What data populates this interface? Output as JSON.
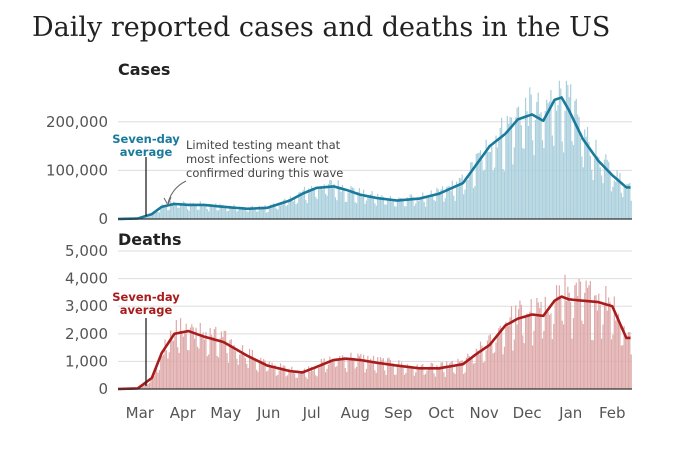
{
  "title": "Daily reported cases and deaths in the US",
  "colors": {
    "cases_bar": "#a9cfdc",
    "cases_line": "#1a7a9c",
    "deaths_bar": "#dea9a9",
    "deaths_line": "#a81c1c",
    "grid": "#dddddd",
    "axis": "#333333"
  },
  "cases_panel": {
    "title": "Cases",
    "seven_day_label": [
      "Seven-day",
      "average"
    ],
    "annotation": [
      "Limited testing meant that",
      "most infections were not",
      "confirmed during this wave"
    ]
  },
  "deaths_panel": {
    "title": "Deaths",
    "seven_day_label": [
      "Seven-day",
      "average"
    ]
  },
  "chart_data": [
    {
      "type": "bar",
      "title": "Cases",
      "subtitle": "Daily reported cases and deaths in the US",
      "x_ticks": [
        "Mar",
        "Apr",
        "May",
        "Jun",
        "Jul",
        "Aug",
        "Sep",
        "Oct",
        "Nov",
        "Dec",
        "Jan",
        "Feb"
      ],
      "y_ticks": [
        "0",
        "100,000",
        "200,000"
      ],
      "ylim": [
        0,
        290000
      ],
      "series": [
        {
          "name": "Seven-day average",
          "type": "line",
          "x": [
            "Mar 1",
            "Mar 15",
            "Mar 25",
            "Apr 1",
            "Apr 10",
            "Apr 20",
            "May 1",
            "May 15",
            "Jun 1",
            "Jun 15",
            "Jul 1",
            "Jul 10",
            "Jul 20",
            "Aug 1",
            "Aug 10",
            "Aug 20",
            "Sep 1",
            "Sep 15",
            "Oct 1",
            "Oct 15",
            "Nov 1",
            "Nov 10",
            "Nov 20",
            "Dec 1",
            "Dec 10",
            "Dec 20",
            "Dec 28",
            "Jan 5",
            "Jan 10",
            "Jan 15",
            "Jan 25",
            "Feb 5",
            "Feb 15",
            "Feb 25"
          ],
          "values": [
            0,
            1000,
            10000,
            25000,
            31000,
            29000,
            29000,
            25000,
            21000,
            23000,
            38000,
            52000,
            64000,
            67000,
            60000,
            50000,
            43000,
            38000,
            42000,
            52000,
            74000,
            110000,
            150000,
            175000,
            205000,
            215000,
            202000,
            245000,
            250000,
            225000,
            165000,
            120000,
            90000,
            65000
          ]
        }
      ],
      "annotation": "Limited testing meant that most infections were not confirmed during this wave"
    },
    {
      "type": "bar",
      "title": "Deaths",
      "x_ticks": [
        "Mar",
        "Apr",
        "May",
        "Jun",
        "Jul",
        "Aug",
        "Sep",
        "Oct",
        "Nov",
        "Dec",
        "Jan",
        "Feb"
      ],
      "y_ticks": [
        "0",
        "1,000",
        "2,000",
        "3,000",
        "4,000",
        "5,000"
      ],
      "ylim": [
        0,
        5400
      ],
      "series": [
        {
          "name": "Seven-day average",
          "type": "line",
          "x": [
            "Mar 1",
            "Mar 15",
            "Mar 25",
            "Apr 1",
            "Apr 10",
            "Apr 20",
            "May 1",
            "May 15",
            "Jun 1",
            "Jun 15",
            "Jul 1",
            "Jul 10",
            "Jul 20",
            "Aug 1",
            "Aug 10",
            "Aug 20",
            "Sep 1",
            "Sep 15",
            "Oct 1",
            "Oct 15",
            "Nov 1",
            "Nov 10",
            "Nov 20",
            "Dec 1",
            "Dec 10",
            "Dec 20",
            "Dec 28",
            "Jan 5",
            "Jan 10",
            "Jan 15",
            "Jan 25",
            "Feb 5",
            "Feb 15",
            "Feb 25"
          ],
          "values": [
            0,
            20,
            400,
            1300,
            2000,
            2100,
            1900,
            1700,
            1200,
            850,
            650,
            600,
            800,
            1050,
            1100,
            1050,
            950,
            850,
            750,
            750,
            900,
            1250,
            1600,
            2300,
            2550,
            2700,
            2650,
            3200,
            3350,
            3250,
            3200,
            3150,
            3000,
            1850
          ]
        }
      ]
    }
  ]
}
